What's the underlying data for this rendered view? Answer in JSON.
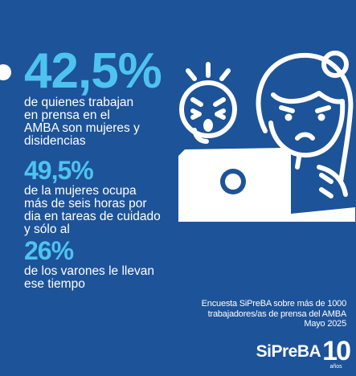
{
  "stats": [
    {
      "value": "42,5%",
      "lines": [
        "de quienes trabajan",
        "en prensa en el",
        "AMBA son mujeres y",
        "disidencias"
      ]
    },
    {
      "value": "49,5%",
      "lines": [
        "de la mujeres ocupa",
        "más de seis horas por",
        "dia en tareas de cuidado",
        "y sólo al"
      ]
    },
    {
      "value": "26%",
      "lines": [
        "de los varones le llevan",
        "ese tiempo"
      ]
    }
  ],
  "source": {
    "lines": [
      "Encuesta SiPreBA sobre más de 1000",
      "trabajadores/as de prensa del AMBA",
      "Mayo 2025"
    ]
  },
  "brand": {
    "name": "SiPreBA",
    "anniversary_number": "10",
    "anniversary_label": "años"
  },
  "colors": {
    "background": "#1d5398",
    "accent": "#4fc3f0",
    "text": "#ffffff"
  },
  "illustration": {
    "icons": [
      "crying-baby-icon",
      "sad-woman-icon",
      "laptop-icon"
    ]
  }
}
